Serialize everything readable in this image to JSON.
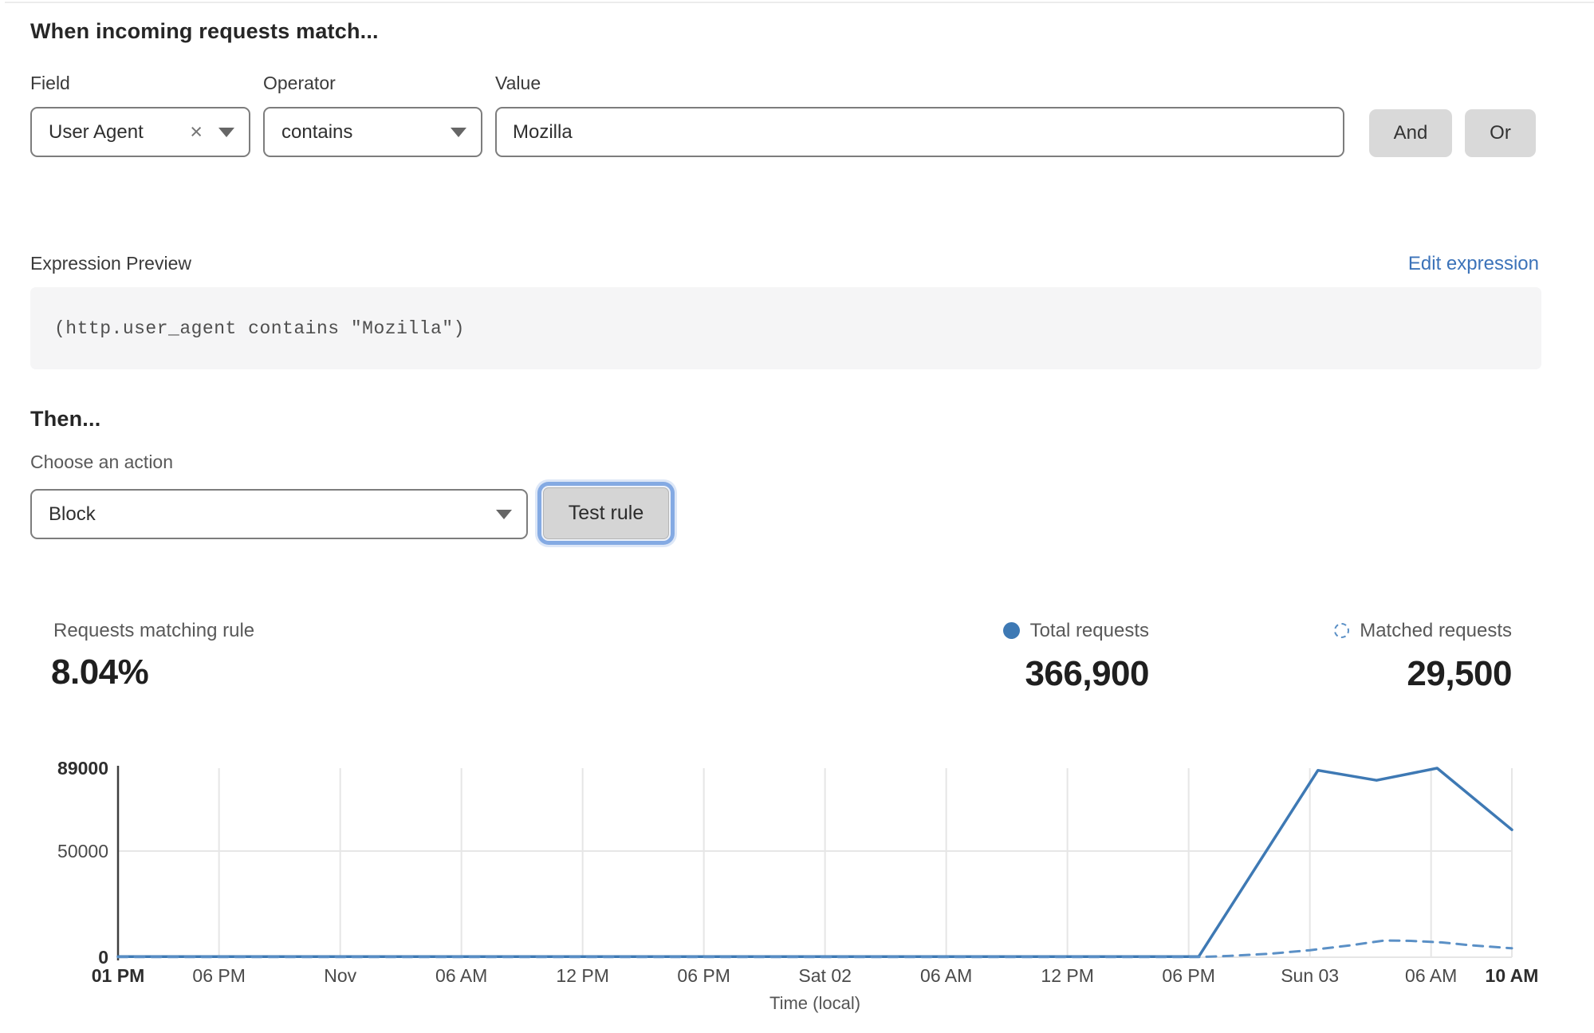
{
  "header": {
    "title": "When incoming requests match..."
  },
  "rule_builder": {
    "field": {
      "label": "Field",
      "value": "User Agent"
    },
    "operator": {
      "label": "Operator",
      "value": "contains"
    },
    "value": {
      "label": "Value",
      "value": "Mozilla"
    },
    "and_label": "And",
    "or_label": "Or"
  },
  "expression": {
    "label": "Expression Preview",
    "edit_link": "Edit expression",
    "code": "(http.user_agent contains \"Mozilla\")"
  },
  "action": {
    "title": "Then...",
    "choose_label": "Choose an action",
    "selected": "Block",
    "test_button": "Test rule"
  },
  "stats": {
    "matching": {
      "label": "Requests matching rule",
      "value": "8.04%"
    },
    "total": {
      "label": "Total requests",
      "value": "366,900"
    },
    "matched": {
      "label": "Matched requests",
      "value": "29,500"
    }
  },
  "chart_data": {
    "type": "line",
    "title": "",
    "xlabel": "Time (local)",
    "ylabel": "",
    "ylim": [
      0,
      89000
    ],
    "x_total_hours": 69,
    "grid": true,
    "legend_position": "top-right",
    "yticks": [
      {
        "value": 0,
        "label": "0",
        "bold": true
      },
      {
        "value": 50000,
        "label": "50000",
        "bold": false
      },
      {
        "value": 89000,
        "label": "89000",
        "bold": true
      }
    ],
    "xticks": [
      {
        "hour": 0,
        "label": "01 PM",
        "bold": true
      },
      {
        "hour": 5,
        "label": "06 PM",
        "bold": false
      },
      {
        "hour": 11,
        "label": "Nov",
        "bold": false
      },
      {
        "hour": 17,
        "label": "06 AM",
        "bold": false
      },
      {
        "hour": 23,
        "label": "12 PM",
        "bold": false
      },
      {
        "hour": 29,
        "label": "06 PM",
        "bold": false
      },
      {
        "hour": 35,
        "label": "Sat 02",
        "bold": false
      },
      {
        "hour": 41,
        "label": "06 AM",
        "bold": false
      },
      {
        "hour": 47,
        "label": "12 PM",
        "bold": false
      },
      {
        "hour": 53,
        "label": "06 PM",
        "bold": false
      },
      {
        "hour": 59,
        "label": "Sun 03",
        "bold": false
      },
      {
        "hour": 65,
        "label": "06 AM",
        "bold": false
      },
      {
        "hour": 69,
        "label": "10 AM",
        "bold": true
      }
    ],
    "series": [
      {
        "name": "Total requests",
        "style": "solid",
        "color": "#3e79b4",
        "points": [
          [
            0,
            300
          ],
          [
            53.5,
            300
          ],
          [
            59.4,
            88000
          ],
          [
            62.3,
            83300
          ],
          [
            65.3,
            89000
          ],
          [
            69,
            60000
          ]
        ]
      },
      {
        "name": "Matched requests",
        "style": "dashed",
        "color": "#5b90c6",
        "points": [
          [
            0,
            100
          ],
          [
            53.5,
            100
          ],
          [
            55,
            600
          ],
          [
            57,
            1600
          ],
          [
            59,
            3300
          ],
          [
            61,
            5600
          ],
          [
            62.7,
            7900
          ],
          [
            64,
            7700
          ],
          [
            65.5,
            7000
          ],
          [
            67,
            5600
          ],
          [
            69,
            4200
          ]
        ]
      }
    ]
  },
  "colors": {
    "accent_link": "#3c73b9",
    "series_total": "#3e79b4",
    "series_matched": "#5b90c6",
    "focus_ring": "#84aae3",
    "button_bg": "#d9d9d9",
    "button_face": "#d5d5d5",
    "input_border": "#7d7d7d",
    "code_bg": "#f5f5f6",
    "grid_line": "#e6e6e6",
    "axis_line": "#3f3f3f"
  }
}
